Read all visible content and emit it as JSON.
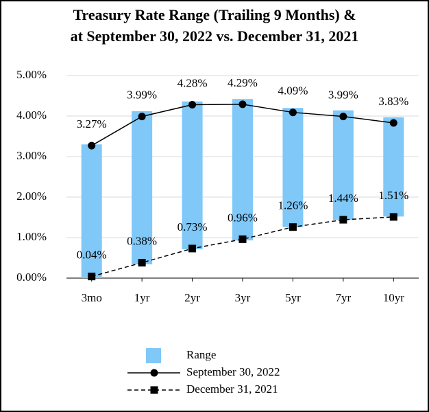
{
  "chart_data": {
    "type": "range-bar-line",
    "title": [
      "Treasury Rate Range (Trailing 9 Months) &",
      "at September 30, 2022 vs. December 31, 2021"
    ],
    "categories": [
      "3mo",
      "1yr",
      "2yr",
      "3yr",
      "5yr",
      "7yr",
      "10yr"
    ],
    "series": [
      {
        "name": "Range",
        "type": "range",
        "color": "#7fc8f8",
        "low": [
          0.0,
          0.34,
          0.71,
          0.93,
          1.26,
          1.44,
          1.52
        ],
        "high": [
          3.3,
          4.12,
          4.36,
          4.42,
          4.2,
          4.14,
          3.97
        ]
      },
      {
        "name": "September 30, 2022",
        "type": "line",
        "color": "#000000",
        "marker": "circle",
        "dashed": false,
        "values": [
          3.27,
          3.99,
          4.28,
          4.29,
          4.09,
          3.99,
          3.83
        ],
        "value_labels": [
          "3.27%",
          "3.99%",
          "4.28%",
          "4.29%",
          "4.09%",
          "3.99%",
          "3.83%"
        ]
      },
      {
        "name": "December 31, 2021",
        "type": "line",
        "color": "#000000",
        "marker": "square",
        "dashed": true,
        "values": [
          0.04,
          0.38,
          0.73,
          0.96,
          1.26,
          1.44,
          1.51
        ],
        "value_labels": [
          "0.04%",
          "0.38%",
          "0.73%",
          "0.96%",
          "1.26%",
          "1.44%",
          "1.51%"
        ]
      }
    ],
    "ylim": [
      0,
      5
    ],
    "yticks": [
      {
        "value": 0,
        "label": "0.00%"
      },
      {
        "value": 1,
        "label": "1.00%"
      },
      {
        "value": 2,
        "label": "2.00%"
      },
      {
        "value": 3,
        "label": "3.00%"
      },
      {
        "value": 4,
        "label": "4.00%"
      },
      {
        "value": 5,
        "label": "5.00%"
      }
    ],
    "grid": true
  }
}
